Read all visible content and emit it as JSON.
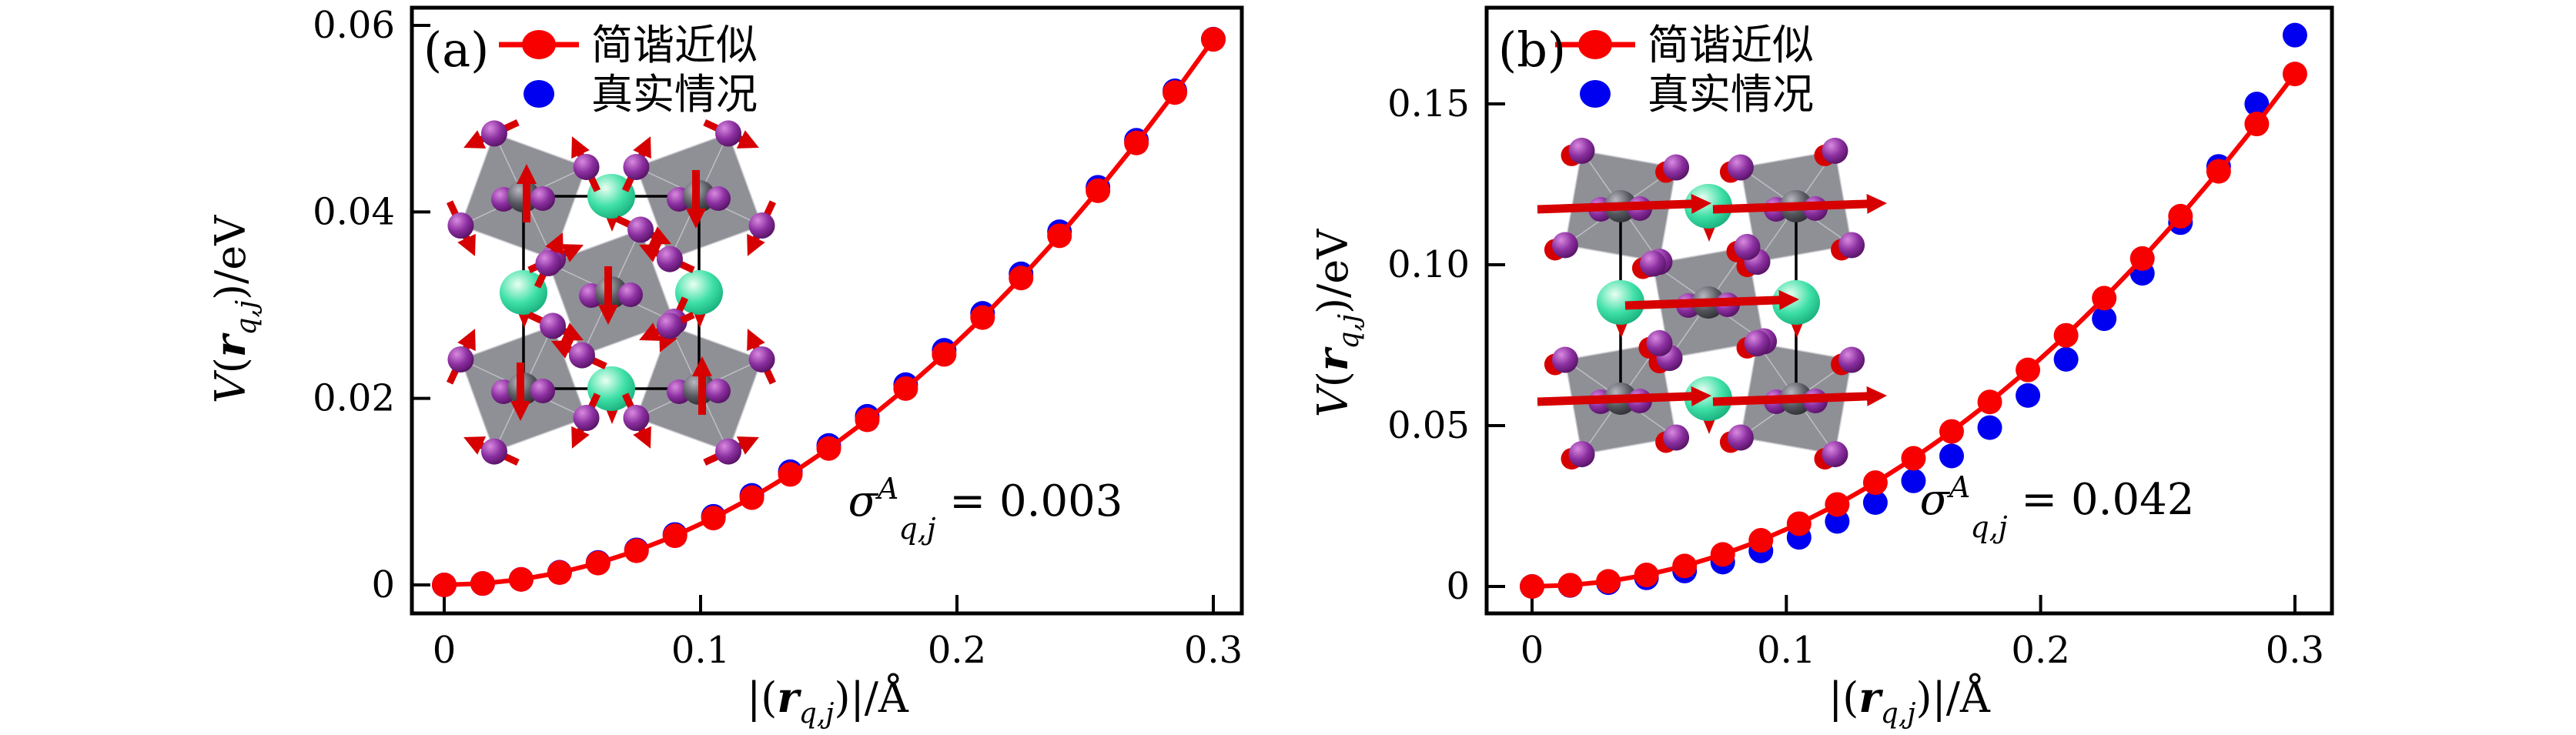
{
  "figure": {
    "background": "#ffffff"
  },
  "labels": {
    "ylabel": {
      "v": "V",
      "open": "(",
      "r": "r",
      "sub": "q,j",
      "close": ")/eV"
    },
    "xlabel": {
      "open": "|(",
      "r": "r",
      "sub": "q,j",
      "close": ")|/",
      "unit": "Å"
    }
  },
  "colors": {
    "harmonic": "#f80000",
    "real": "#0000f0",
    "frame": "#000000",
    "inset": {
      "octahedron": "#85858d",
      "octahedron_edge": "#c9c9cf",
      "halide": "#8b2fa0",
      "halide_light": "#d98ae0",
      "metal": "#45454d",
      "metal_light": "#b8b8c0",
      "cation": "#2fd9a2",
      "cation_light": "#eafff2",
      "arrow": "#d60000",
      "cell": "#000000"
    }
  },
  "panels": [
    {
      "label": "(a)",
      "legend": {
        "items": [
          {
            "name": "harmonic",
            "label": "简谐近似"
          },
          {
            "name": "real",
            "label": "真实情况"
          }
        ]
      },
      "annotation": {
        "sigma": "σ",
        "sup": "A",
        "sub": "q,j",
        "eq": " = ",
        "value": "0.003"
      },
      "yticks": [
        {
          "v": 0,
          "t": "0"
        },
        {
          "v": 0.02,
          "t": "0.02"
        },
        {
          "v": 0.04,
          "t": "0.04"
        },
        {
          "v": 0.06,
          "t": "0.06"
        }
      ],
      "xticks": [
        {
          "v": 0,
          "t": "0"
        },
        {
          "v": 0.1,
          "t": "0.1"
        },
        {
          "v": 0.2,
          "t": "0.2"
        },
        {
          "v": 0.3,
          "t": "0.3"
        }
      ]
    },
    {
      "label": "(b)",
      "legend": {
        "items": [
          {
            "name": "harmonic",
            "label": "简谐近似"
          },
          {
            "name": "real",
            "label": "真实情况"
          }
        ]
      },
      "annotation": {
        "sigma": "σ",
        "sup": "A",
        "sub": "q,j",
        "eq": " = ",
        "value": "0.042"
      },
      "yticks": [
        {
          "v": 0,
          "t": "0"
        },
        {
          "v": 0.05,
          "t": "0.05"
        },
        {
          "v": 0.1,
          "t": "0.10"
        },
        {
          "v": 0.15,
          "t": "0.15"
        }
      ],
      "xticks": [
        {
          "v": 0,
          "t": "0"
        },
        {
          "v": 0.1,
          "t": "0.1"
        },
        {
          "v": 0.2,
          "t": "0.2"
        },
        {
          "v": 0.3,
          "t": "0.3"
        }
      ]
    }
  ],
  "chart_data": [
    {
      "type": "line",
      "panel": "(a)",
      "title": "",
      "xlabel": "|(r_q,j)|/Å",
      "ylabel": "V(r_q,j)/eV",
      "xlim": [
        -0.013,
        0.312
      ],
      "ylim": [
        -0.003,
        0.062
      ],
      "grid": false,
      "legend_position": "upper-left",
      "annotation": "σ^A_q,j = 0.003",
      "x": [
        0,
        0.015,
        0.03,
        0.045,
        0.06,
        0.075,
        0.09,
        0.105,
        0.12,
        0.135,
        0.15,
        0.165,
        0.18,
        0.195,
        0.21,
        0.225,
        0.24,
        0.255,
        0.27,
        0.285,
        0.3
      ],
      "series": [
        {
          "name": "简谐近似",
          "style": "line+marker",
          "color": "#f80000",
          "values": [
            0,
            0.00015,
            0.00059,
            0.00132,
            0.00234,
            0.00366,
            0.00527,
            0.00717,
            0.00936,
            0.01185,
            0.01463,
            0.0177,
            0.02106,
            0.02472,
            0.02867,
            0.03291,
            0.03744,
            0.04227,
            0.04739,
            0.0528,
            0.0585
          ]
        },
        {
          "name": "真实情况",
          "style": "marker",
          "color": "#0000f0",
          "values": [
            0,
            0.00015,
            0.0006,
            0.00136,
            0.00241,
            0.00376,
            0.00541,
            0.00736,
            0.0096,
            0.01214,
            0.01496,
            0.01808,
            0.02148,
            0.02516,
            0.02912,
            0.03336,
            0.03787,
            0.04264,
            0.04768,
            0.05298,
            0.05852
          ]
        }
      ]
    },
    {
      "type": "line",
      "panel": "(b)",
      "title": "",
      "xlabel": "|(r_q,j)|/Å",
      "ylabel": "V(r_q,j)/eV",
      "xlim": [
        -0.014,
        0.314
      ],
      "ylim": [
        -0.008,
        0.18
      ],
      "grid": false,
      "legend_position": "upper-left",
      "annotation": "σ^A_q,j = 0.042",
      "x": [
        0,
        0.015,
        0.03,
        0.045,
        0.06,
        0.075,
        0.09,
        0.105,
        0.12,
        0.135,
        0.15,
        0.165,
        0.18,
        0.195,
        0.21,
        0.225,
        0.24,
        0.255,
        0.27,
        0.285,
        0.3
      ],
      "series": [
        {
          "name": "简谐近似",
          "style": "line+marker",
          "color": "#f80000",
          "values": [
            0,
            0.0004,
            0.00159,
            0.00358,
            0.00637,
            0.00996,
            0.01434,
            0.01951,
            0.02549,
            0.03226,
            0.03983,
            0.04819,
            0.05735,
            0.0673,
            0.07806,
            0.08961,
            0.10195,
            0.11509,
            0.12903,
            0.14377,
            0.1593
          ]
        },
        {
          "name": "真实情况",
          "style": "marker",
          "color": "#0000f0",
          "values": [
            0,
            0.0003,
            0.00118,
            0.00268,
            0.0048,
            0.00758,
            0.01104,
            0.01525,
            0.02023,
            0.02607,
            0.03282,
            0.04056,
            0.04937,
            0.05936,
            0.07061,
            0.08323,
            0.09735,
            0.11309,
            0.13057,
            0.14996,
            0.17137
          ]
        }
      ]
    }
  ]
}
